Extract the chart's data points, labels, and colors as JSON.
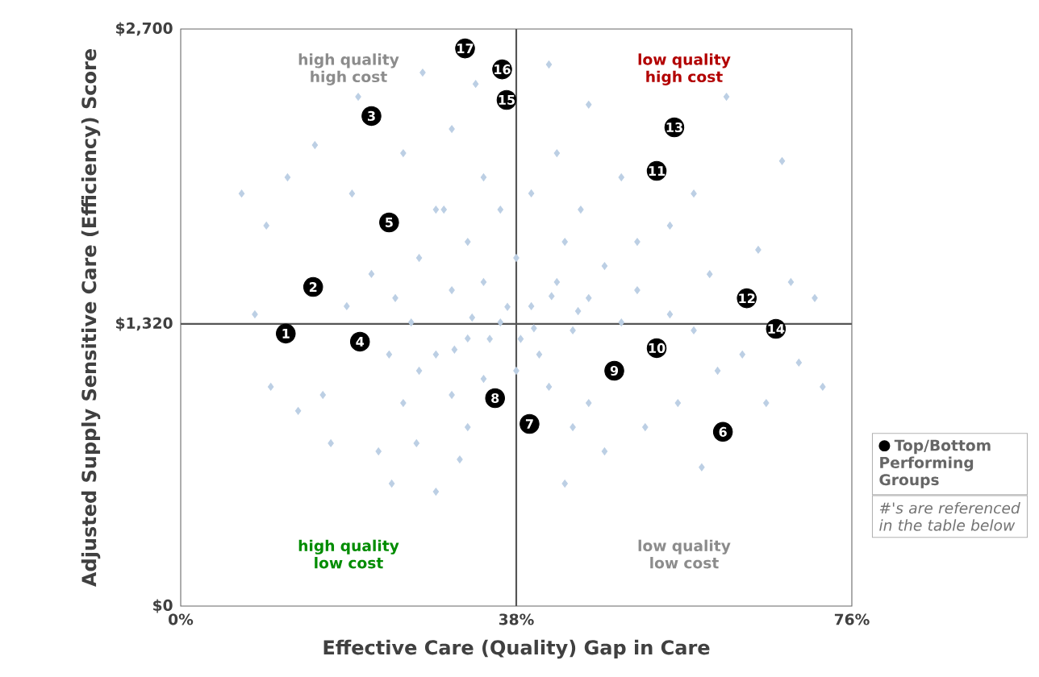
{
  "chart_data": {
    "type": "scatter",
    "xlabel": "Effective Care (Quality) Gap in Care",
    "ylabel": "Adjusted Supply Sensitive Care (Efficiency) Score",
    "xlim": [
      0,
      76
    ],
    "ylim": [
      0,
      2700
    ],
    "xticks": [
      {
        "value": 0,
        "label": "0%"
      },
      {
        "value": 38,
        "label": "38%"
      },
      {
        "value": 76,
        "label": "76%"
      }
    ],
    "yticks": [
      {
        "value": 0,
        "label": "$0"
      },
      {
        "value": 1320,
        "label": "$1,320"
      },
      {
        "value": 2700,
        "label": "$2,700"
      }
    ],
    "grid": false,
    "legend": "right",
    "ref_lines": [
      {
        "axis": "x",
        "value": 38,
        "color": "#555555"
      },
      {
        "axis": "y",
        "value": 1320,
        "color": "#555555"
      }
    ],
    "annotations": [
      "high quality high cost",
      "low quality high cost",
      "high quality low cost",
      "low quality low cost",
      "#'s are referenced in the table below",
      {
        "text": "1",
        "x": 11.9,
        "y": 1275
      },
      {
        "text": "2",
        "x": 15.0,
        "y": 1493
      },
      {
        "text": "3",
        "x": 21.6,
        "y": 2293
      },
      {
        "text": "4",
        "x": 20.3,
        "y": 1237
      },
      {
        "text": "5",
        "x": 23.6,
        "y": 1795
      },
      {
        "text": "6",
        "x": 61.4,
        "y": 815
      },
      {
        "text": "7",
        "x": 39.5,
        "y": 852
      },
      {
        "text": "8",
        "x": 35.6,
        "y": 973
      },
      {
        "text": "9",
        "x": 49.1,
        "y": 1101
      },
      {
        "text": "10",
        "x": 53.9,
        "y": 1207
      },
      {
        "text": "11",
        "x": 53.9,
        "y": 2036
      },
      {
        "text": "12",
        "x": 64.1,
        "y": 1440
      },
      {
        "text": "13",
        "x": 55.9,
        "y": 2240
      },
      {
        "text": "14",
        "x": 67.4,
        "y": 1297
      },
      {
        "text": "15",
        "x": 36.9,
        "y": 2368
      },
      {
        "text": "16",
        "x": 36.4,
        "y": 2511
      },
      {
        "text": "17",
        "x": 32.2,
        "y": 2609
      }
    ],
    "series": [
      {
        "color": "#bccfe4",
        "marker": "diamond",
        "x": [
          6.9,
          8.4,
          9.7,
          10.2,
          12.1,
          13.3,
          15.2,
          16.1,
          17,
          19.4,
          20.1,
          22.4,
          23.9,
          25.2,
          26.7,
          27.4,
          28.9,
          29.8,
          30.7,
          31.6,
          33.4,
          34.3,
          41.7,
          42.6,
          43.5,
          45.3,
          46.2,
          48.0,
          49.9,
          51.7,
          52.6,
          55.4,
          56.3,
          58.1,
          59.0,
          59.9,
          60.8,
          61.8,
          63.6,
          65.4,
          66.3,
          68.1,
          69.1,
          70.0,
          71.8,
          72.7,
          39.7,
          36.2,
          34.3,
          32.5,
          30.7,
          28.9,
          27.0,
          26.1,
          24.3,
          38.0,
          40.6,
          42.6,
          44.4,
          46.2,
          48.0,
          49.9,
          51.7,
          41.7,
          38.0,
          34.3,
          30.7,
          36.2,
          32.5,
          39.7,
          43.5,
          28.9,
          27.0,
          23.6,
          21.6,
          55.4,
          58.1,
          46.2,
          44.4,
          32.5,
          25.2,
          18.8,
          37.0,
          35.0,
          40.0,
          42.0,
          33.0,
          31.0,
          45.0,
          38.5
        ],
        "values": [
          1930,
          1365,
          1780,
          1026,
          2006,
          913,
          2157,
          988,
          762,
          1930,
          2383,
          724,
          573,
          2119,
          762,
          2496,
          535,
          1855,
          2232,
          686,
          2443,
          2006,
          2534,
          2119,
          573,
          1855,
          2346,
          724,
          2006,
          1704,
          837,
          1780,
          950,
          1930,
          649,
          1553,
          1101,
          2383,
          1177,
          1667,
          950,
          2082,
          1516,
          1139,
          1441,
          1026,
          1403,
          1327,
          1516,
          1252,
          1478,
          1177,
          1629,
          1327,
          1441,
          1629,
          1177,
          1516,
          1290,
          1441,
          1591,
          1327,
          1478,
          1026,
          1101,
          1063,
          988,
          1855,
          1704,
          1931,
          1704,
          1855,
          1101,
          1177,
          1554,
          1365,
          1290,
          950,
          837,
          837,
          950,
          1403,
          1400,
          1250,
          1300,
          1450,
          1350,
          1200,
          1380,
          1250
        ]
      },
      {
        "name": "Top/Bottom Performing Groups",
        "color": "#000000",
        "marker": "circle",
        "x": [
          11.9,
          15.0,
          21.6,
          20.3,
          23.6,
          61.4,
          39.5,
          35.6,
          49.1,
          53.9,
          53.9,
          64.1,
          55.9,
          67.4,
          36.9,
          36.4,
          32.2
        ],
        "values": [
          1275,
          1493,
          2293,
          1237,
          1795,
          815,
          852,
          973,
          1101,
          1207,
          2036,
          1440,
          2240,
          1297,
          2368,
          2511,
          2609
        ]
      }
    ]
  }
}
